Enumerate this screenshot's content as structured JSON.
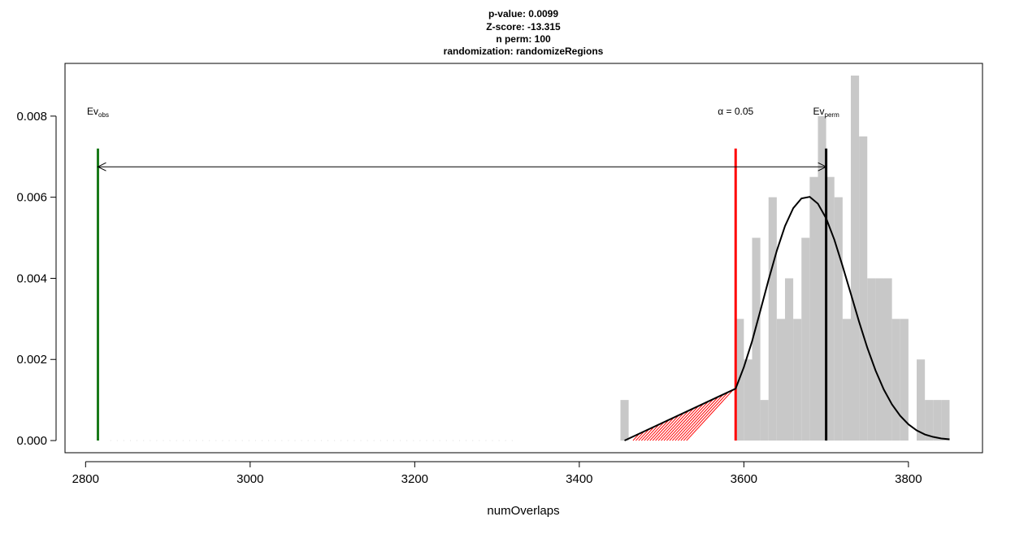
{
  "chart_data": {
    "type": "bar",
    "title_lines": [
      "p-value:  0.0099",
      "Z-score:  -13.315",
      "n perm:  100",
      "randomization:  randomizeRegions"
    ],
    "xlabel": "numOverlaps",
    "ylabel": "",
    "xlim": [
      2775,
      3890
    ],
    "ylim": [
      -0.0003,
      0.0093
    ],
    "x_ticks": [
      2800,
      3000,
      3200,
      3400,
      3600,
      3800
    ],
    "y_ticks": [
      0.0,
      0.002,
      0.004,
      0.006,
      0.008
    ],
    "x_tick_labels": [
      "2800",
      "3000",
      "3200",
      "3400",
      "3600",
      "3800"
    ],
    "y_tick_labels": [
      "0.000",
      "0.002",
      "0.004",
      "0.006",
      "0.008"
    ],
    "histogram": {
      "color": "#c8c8c8",
      "bin_width": 10,
      "bin_starts": [
        3450,
        3590,
        3600,
        3610,
        3620,
        3630,
        3640,
        3650,
        3660,
        3670,
        3680,
        3690,
        3700,
        3710,
        3720,
        3730,
        3740,
        3750,
        3760,
        3770,
        3780,
        3790,
        3800,
        3810,
        3820,
        3830,
        3840
      ],
      "densities": [
        0.001,
        0.003,
        0.002,
        0.005,
        0.001,
        0.006,
        0.003,
        0.004,
        0.003,
        0.005,
        0.0065,
        0.008,
        0.0065,
        0.006,
        0.003,
        0.009,
        0.0075,
        0.004,
        0.004,
        0.004,
        0.003,
        0.003,
        0.0,
        0.002,
        0.001,
        0.001,
        0.001
      ]
    },
    "density_curve": {
      "color": "#000000",
      "x": [
        3455,
        3590,
        3600,
        3610,
        3620,
        3630,
        3640,
        3650,
        3660,
        3670,
        3680,
        3690,
        3700,
        3710,
        3720,
        3730,
        3740,
        3750,
        3760,
        3770,
        3780,
        3790,
        3800,
        3810,
        3820,
        3830,
        3840,
        3850
      ],
      "y": [
        0.0,
        0.00128,
        0.00181,
        0.00245,
        0.0032,
        0.00396,
        0.00468,
        0.00529,
        0.00573,
        0.00597,
        0.00601,
        0.00584,
        0.00548,
        0.00495,
        0.0043,
        0.00362,
        0.00293,
        0.00229,
        0.00173,
        0.00126,
        0.00089,
        0.00061,
        0.0004,
        0.00025,
        0.00015,
        9e-05,
        5e-05,
        3e-05
      ]
    },
    "shaded_region": {
      "color": "#ff0000",
      "from": 3455,
      "to": 3590
    },
    "lines": [
      {
        "name": "Ev_obs",
        "x": 2815,
        "color": "#1a7a1a",
        "label_main": "Ev",
        "label_sub": "obs"
      },
      {
        "name": "alpha",
        "x": 3590,
        "color": "#ff0000",
        "label_main": "α = 0.05",
        "label_sub": ""
      },
      {
        "name": "Ev_perm",
        "x": 3700,
        "color": "#000000",
        "label_main": "Ev",
        "label_sub": "perm"
      }
    ],
    "line_top_y": 0.0072,
    "label_y": 0.008,
    "arrow": {
      "from": 2815,
      "to": 3700,
      "y": 0.00675,
      "color": "#000000"
    },
    "grid": false,
    "legend": "none"
  }
}
